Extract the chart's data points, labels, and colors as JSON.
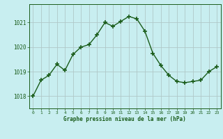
{
  "x": [
    0,
    1,
    2,
    3,
    4,
    5,
    6,
    7,
    8,
    9,
    10,
    11,
    12,
    13,
    14,
    15,
    16,
    17,
    18,
    19,
    20,
    21,
    22,
    23
  ],
  "y": [
    1018.0,
    1018.65,
    1018.85,
    1019.3,
    1019.05,
    1019.7,
    1020.0,
    1020.1,
    1020.5,
    1021.0,
    1020.85,
    1021.05,
    1021.25,
    1021.15,
    1020.65,
    1019.75,
    1019.25,
    1018.85,
    1018.6,
    1018.55,
    1018.6,
    1018.65,
    1019.0,
    1019.2
  ],
  "line_color": "#1a5c1a",
  "marker": "+",
  "marker_size": 4,
  "marker_linewidth": 1.2,
  "line_width": 1.0,
  "bg_color": "#c8eef0",
  "grid_color": "#b0c8c8",
  "xlabel": "Graphe pression niveau de la mer (hPa)",
  "xlabel_color": "#1a5c1a",
  "tick_color": "#1a5c1a",
  "spine_color": "#1a5c1a",
  "ylim": [
    1017.5,
    1021.75
  ],
  "xlim": [
    -0.5,
    23.5
  ],
  "yticks": [
    1018,
    1019,
    1020,
    1021
  ],
  "xticks": [
    0,
    1,
    2,
    3,
    4,
    5,
    6,
    7,
    8,
    9,
    10,
    11,
    12,
    13,
    14,
    15,
    16,
    17,
    18,
    19,
    20,
    21,
    22,
    23
  ],
  "figsize": [
    3.2,
    2.0
  ],
  "dpi": 100
}
